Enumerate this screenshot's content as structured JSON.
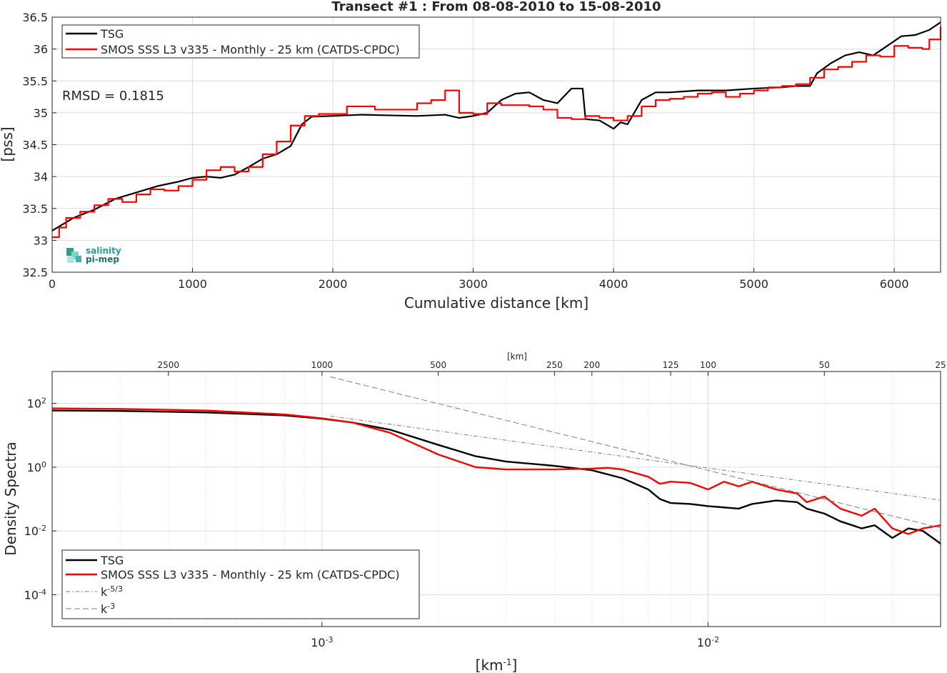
{
  "chart_data": [
    {
      "type": "line",
      "title": "Transect #1 : From 08-08-2010 to 15-08-2010",
      "xlabel": "Cumulative distance [km]",
      "ylabel": "[pss]",
      "xlim": [
        0,
        6330
      ],
      "ylim": [
        32.5,
        36.5
      ],
      "xticks": [
        "0",
        "1000",
        "2000",
        "3000",
        "4000",
        "5000",
        "6000"
      ],
      "yticks": [
        "32.5",
        "33",
        "33.5",
        "34",
        "34.5",
        "35",
        "35.5",
        "36",
        "36.5"
      ],
      "grid": true,
      "legend_position": "top-left",
      "annotation": "RMSD = 0.1815",
      "logo": {
        "line1": "salinity",
        "line2": "pi-mep"
      },
      "series": [
        {
          "name": "TSG",
          "color": "#000000",
          "x": [
            0,
            150,
            300,
            450,
            600,
            750,
            900,
            1000,
            1100,
            1200,
            1300,
            1400,
            1500,
            1600,
            1700,
            1780,
            1850,
            2000,
            2200,
            2400,
            2600,
            2800,
            2900,
            3000,
            3100,
            3200,
            3300,
            3400,
            3500,
            3600,
            3700,
            3780,
            3800,
            3900,
            4000,
            4050,
            4100,
            4200,
            4300,
            4400,
            4600,
            4800,
            5000,
            5200,
            5300,
            5400,
            5450,
            5550,
            5650,
            5750,
            5850,
            5950,
            6050,
            6150,
            6250,
            6330
          ],
          "values": [
            33.15,
            33.35,
            33.48,
            33.65,
            33.75,
            33.85,
            33.92,
            33.98,
            34.0,
            33.98,
            34.03,
            34.15,
            34.28,
            34.35,
            34.48,
            34.82,
            34.94,
            34.95,
            34.97,
            34.96,
            34.95,
            34.97,
            34.92,
            34.95,
            35.0,
            35.2,
            35.3,
            35.32,
            35.2,
            35.15,
            35.38,
            35.38,
            34.9,
            34.88,
            34.75,
            34.85,
            34.82,
            35.2,
            35.32,
            35.32,
            35.35,
            35.35,
            35.38,
            35.4,
            35.42,
            35.42,
            35.62,
            35.78,
            35.9,
            35.95,
            35.9,
            36.05,
            36.2,
            36.22,
            36.3,
            36.42
          ]
        },
        {
          "name": "SMOS SSS L3 v335 - Monthly - 25 km (CATDS-CPDC)",
          "color": "#ff0000",
          "x": [
            0,
            50,
            100,
            200,
            300,
            400,
            500,
            600,
            700,
            800,
            900,
            1000,
            1100,
            1200,
            1300,
            1400,
            1500,
            1600,
            1700,
            1800,
            1900,
            2000,
            2100,
            2200,
            2300,
            2400,
            2500,
            2600,
            2700,
            2800,
            2900,
            3000,
            3100,
            3200,
            3300,
            3400,
            3500,
            3600,
            3700,
            3800,
            3900,
            4000,
            4100,
            4200,
            4300,
            4400,
            4500,
            4600,
            4700,
            4800,
            4900,
            5000,
            5100,
            5200,
            5300,
            5400,
            5500,
            5600,
            5700,
            5800,
            5900,
            6000,
            6100,
            6200,
            6250,
            6330
          ],
          "values": [
            33.05,
            33.2,
            33.35,
            33.45,
            33.55,
            33.65,
            33.6,
            33.72,
            33.8,
            33.78,
            33.85,
            33.95,
            34.1,
            34.15,
            34.08,
            34.15,
            34.35,
            34.55,
            34.8,
            34.95,
            34.98,
            34.98,
            35.1,
            35.1,
            35.05,
            35.05,
            35.05,
            35.15,
            35.2,
            35.35,
            35.0,
            34.98,
            35.15,
            35.12,
            35.12,
            35.1,
            35.05,
            34.92,
            34.9,
            34.95,
            34.92,
            34.88,
            34.95,
            35.1,
            35.2,
            35.22,
            35.25,
            35.3,
            35.32,
            35.25,
            35.3,
            35.35,
            35.4,
            35.42,
            35.45,
            35.55,
            35.68,
            35.72,
            35.8,
            35.9,
            35.88,
            36.05,
            36.02,
            36.0,
            36.15,
            36.35
          ]
        }
      ]
    },
    {
      "type": "line",
      "xlabel": "[km-1]",
      "ylabel": "Density Spectra",
      "xscale": "log",
      "yscale": "log",
      "xlim": [
        0.0002,
        0.04
      ],
      "ylim": [
        1e-05,
        1000
      ],
      "xticks": [
        "10-3",
        "10-2"
      ],
      "yticks": [
        "10-4",
        "10-2",
        "100",
        "102"
      ],
      "top_axis_label": "[km]",
      "top_ticks": [
        "2500",
        "1000",
        "500",
        "250",
        "200",
        "125",
        "100",
        "50",
        "25"
      ],
      "grid": true,
      "legend_position": "bottom-left",
      "series": [
        {
          "name": "TSG",
          "color": "#000000",
          "x": [
            0.0002,
            0.0003,
            0.0005,
            0.0008,
            0.001,
            0.0012,
            0.0015,
            0.002,
            0.0025,
            0.003,
            0.004,
            0.005,
            0.006,
            0.007,
            0.0075,
            0.008,
            0.009,
            0.01,
            0.012,
            0.013,
            0.015,
            0.017,
            0.018,
            0.02,
            0.022,
            0.025,
            0.027,
            0.03,
            0.033,
            0.036,
            0.04
          ],
          "values": [
            60,
            58,
            52,
            42,
            33,
            25,
            15,
            5,
            2.2,
            1.5,
            1.1,
            0.8,
            0.45,
            0.2,
            0.1,
            0.075,
            0.07,
            0.06,
            0.05,
            0.07,
            0.09,
            0.08,
            0.05,
            0.035,
            0.02,
            0.012,
            0.015,
            0.006,
            0.012,
            0.01,
            0.004
          ]
        },
        {
          "name": "SMOS SSS L3 v335 - Monthly - 25 km (CATDS-CPDC)",
          "color": "#ff0000",
          "x": [
            0.0002,
            0.0003,
            0.0005,
            0.0008,
            0.001,
            0.0012,
            0.0015,
            0.002,
            0.0025,
            0.003,
            0.004,
            0.005,
            0.0055,
            0.006,
            0.007,
            0.0075,
            0.008,
            0.009,
            0.01,
            0.011,
            0.012,
            0.013,
            0.015,
            0.017,
            0.018,
            0.02,
            0.022,
            0.025,
            0.027,
            0.03,
            0.033,
            0.036,
            0.04
          ],
          "values": [
            70,
            67,
            60,
            45,
            34,
            25,
            12,
            2.5,
            1.0,
            0.85,
            0.85,
            0.9,
            0.95,
            0.85,
            0.5,
            0.3,
            0.35,
            0.32,
            0.2,
            0.35,
            0.25,
            0.35,
            0.2,
            0.15,
            0.08,
            0.12,
            0.05,
            0.03,
            0.05,
            0.012,
            0.008,
            0.012,
            0.015
          ]
        },
        {
          "name": "k-5/3",
          "color": "#7f7f7f",
          "style": "dashdot",
          "x": [
            0.00105,
            0.04
          ],
          "values": [
            40,
            0.093
          ]
        },
        {
          "name": "k-3",
          "color": "#7f7f7f",
          "style": "dashed",
          "x": [
            0.00105,
            0.04
          ],
          "values": [
            680,
            0.0124
          ]
        }
      ]
    }
  ]
}
